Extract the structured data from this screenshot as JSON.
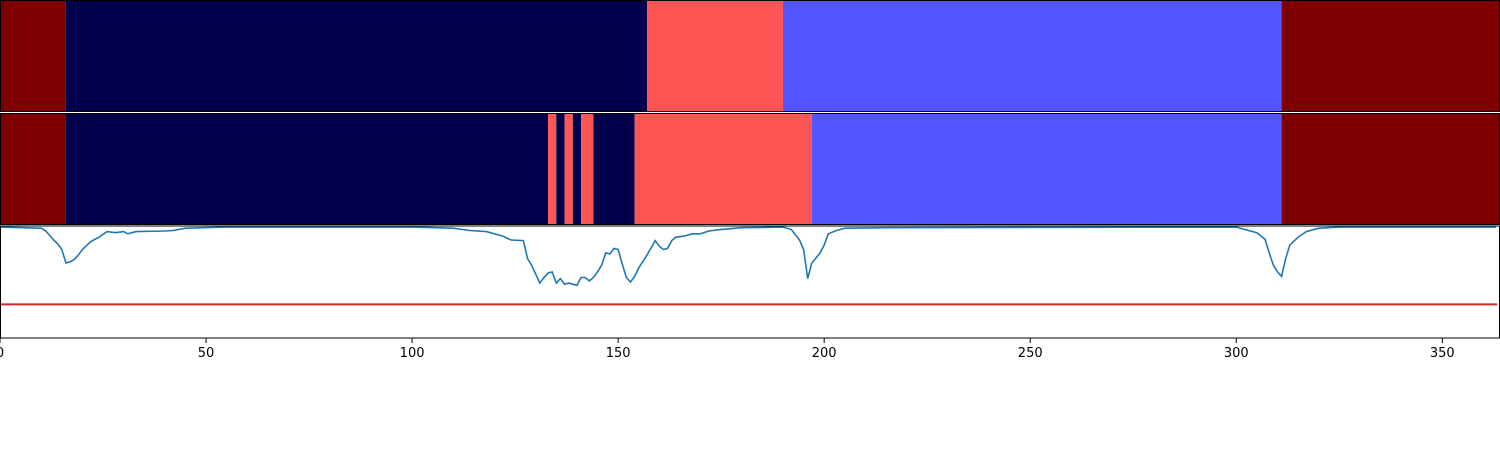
{
  "chart_data": [
    {
      "type": "timeline",
      "xlim": [
        0,
        364
      ],
      "segments": [
        {
          "start": 0,
          "end": 16,
          "color": "#7f0000"
        },
        {
          "start": 16,
          "end": 157,
          "color": "#00004c"
        },
        {
          "start": 157,
          "end": 190,
          "color": "#ff5555"
        },
        {
          "start": 190,
          "end": 311,
          "color": "#5555ff"
        },
        {
          "start": 311,
          "end": 364,
          "color": "#7f0000"
        }
      ]
    },
    {
      "type": "timeline",
      "xlim": [
        0,
        364
      ],
      "segments": [
        {
          "start": 0,
          "end": 16,
          "color": "#7f0000"
        },
        {
          "start": 16,
          "end": 133,
          "color": "#00004c"
        },
        {
          "start": 133,
          "end": 135,
          "color": "#ff5555"
        },
        {
          "start": 135,
          "end": 137,
          "color": "#00004c"
        },
        {
          "start": 137,
          "end": 139,
          "color": "#ff5555"
        },
        {
          "start": 139,
          "end": 141,
          "color": "#00004c"
        },
        {
          "start": 141,
          "end": 144,
          "color": "#ff5555"
        },
        {
          "start": 144,
          "end": 154,
          "color": "#00004c"
        },
        {
          "start": 154,
          "end": 197,
          "color": "#ff5555"
        },
        {
          "start": 197,
          "end": 311,
          "color": "#5555ff"
        },
        {
          "start": 311,
          "end": 364,
          "color": "#7f0000"
        }
      ]
    },
    {
      "type": "line",
      "xlim": [
        0,
        364
      ],
      "ylim": [
        0,
        1
      ],
      "color": "#1f77b4",
      "threshold": 0.3,
      "threshold_color": "#d62728",
      "xticks": [
        0,
        50,
        100,
        150,
        200,
        250,
        300,
        350
      ],
      "x": [
        0,
        10,
        11,
        13,
        14,
        15,
        16,
        17,
        18,
        19,
        20,
        22,
        24,
        26,
        28,
        30,
        31,
        33,
        40,
        42,
        45,
        55,
        100,
        110,
        114,
        118,
        122,
        124,
        127,
        128,
        129,
        131,
        132,
        133,
        134,
        135,
        136,
        137,
        138,
        139,
        140,
        141,
        142,
        143,
        144,
        145,
        146,
        147,
        148,
        149,
        150,
        151,
        152,
        153,
        154,
        155,
        157,
        159,
        160,
        161,
        162,
        163,
        164,
        166,
        168,
        170,
        172,
        175,
        180,
        190,
        192,
        194,
        195,
        196,
        197,
        199,
        200,
        201,
        203,
        205,
        215,
        300,
        302,
        305,
        307,
        308,
        309,
        310,
        311,
        312,
        313,
        315,
        317,
        320,
        325,
        363
      ],
      "values": [
        0.99,
        0.98,
        0.96,
        0.875,
        0.84,
        0.79,
        0.67,
        0.68,
        0.7,
        0.74,
        0.79,
        0.86,
        0.9,
        0.95,
        0.94,
        0.95,
        0.93,
        0.95,
        0.955,
        0.96,
        0.98,
        0.99,
        0.99,
        0.98,
        0.96,
        0.95,
        0.91,
        0.875,
        0.87,
        0.71,
        0.65,
        0.49,
        0.54,
        0.58,
        0.59,
        0.49,
        0.53,
        0.48,
        0.49,
        0.48,
        0.47,
        0.54,
        0.54,
        0.51,
        0.54,
        0.59,
        0.65,
        0.76,
        0.75,
        0.8,
        0.79,
        0.66,
        0.54,
        0.5,
        0.55,
        0.625,
        0.74,
        0.87,
        0.82,
        0.79,
        0.8,
        0.87,
        0.9,
        0.91,
        0.93,
        0.93,
        0.955,
        0.97,
        0.985,
        0.99,
        0.97,
        0.875,
        0.79,
        0.53,
        0.67,
        0.76,
        0.83,
        0.93,
        0.96,
        0.98,
        0.985,
        0.99,
        0.97,
        0.94,
        0.88,
        0.76,
        0.65,
        0.59,
        0.55,
        0.71,
        0.83,
        0.9,
        0.95,
        0.98,
        0.99,
        0.99
      ]
    }
  ]
}
